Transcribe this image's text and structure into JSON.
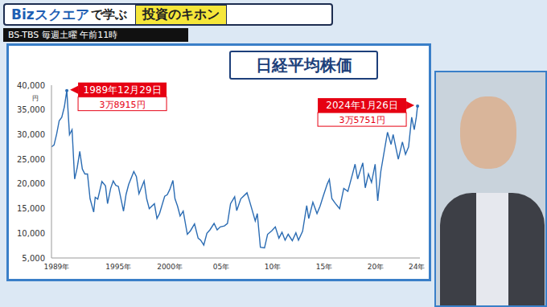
{
  "header": {
    "program": "Bizスクエア",
    "suffix": "で学ぶ",
    "series": "投資のキホン",
    "schedule": "BS-TBS 毎週土曜 午前11時"
  },
  "chart_data": {
    "type": "line",
    "title": "日経平均株価",
    "ylabel": "円",
    "color": "#2b6cb3",
    "grid": false,
    "xlim": [
      1988.5,
      2024.3
    ],
    "xticks": [
      {
        "value": 1989,
        "label": "1989年"
      },
      {
        "value": 1995,
        "label": "1995年"
      },
      {
        "value": 2000,
        "label": "2000年"
      },
      {
        "value": 2005,
        "label": "05年"
      },
      {
        "value": 2010,
        "label": "10年"
      },
      {
        "value": 2015,
        "label": "15年"
      },
      {
        "value": 2020,
        "label": "20年"
      },
      {
        "value": 2024,
        "label": "24年"
      }
    ],
    "ylim": [
      5000,
      40000
    ],
    "yticks": [
      {
        "value": 5000,
        "label": "5,000"
      },
      {
        "value": 10000,
        "label": "10,000"
      },
      {
        "value": 15000,
        "label": "15,000"
      },
      {
        "value": 20000,
        "label": "20,000"
      },
      {
        "value": 25000,
        "label": "25,000"
      },
      {
        "value": 30000,
        "label": "30,000"
      },
      {
        "value": 35000,
        "label": "35,000"
      },
      {
        "value": 40000,
        "label": "40,000"
      }
    ],
    "x": [
      1988.5,
      1988.75,
      1989.0,
      1989.25,
      1989.5,
      1989.75,
      1989.99,
      1990.25,
      1990.5,
      1990.75,
      1991.0,
      1991.25,
      1991.5,
      1991.75,
      1992.0,
      1992.25,
      1992.6,
      1992.75,
      1993.0,
      1993.4,
      1993.75,
      1993.95,
      1994.25,
      1994.5,
      1994.75,
      1995.0,
      1995.5,
      1995.75,
      1996.0,
      1996.5,
      1996.75,
      1997.0,
      1997.5,
      1997.75,
      1998.0,
      1998.5,
      1998.75,
      1999.0,
      1999.5,
      1999.75,
      2000.0,
      2000.3,
      2000.5,
      2000.75,
      2001.0,
      2001.3,
      2001.7,
      2002.0,
      2002.4,
      2002.75,
      2003.0,
      2003.3,
      2003.6,
      2003.9,
      2004.3,
      2004.6,
      2004.9,
      2005.3,
      2005.6,
      2005.9,
      2006.3,
      2006.5,
      2006.9,
      2007.3,
      2007.5,
      2007.75,
      2008.0,
      2008.3,
      2008.5,
      2008.8,
      2009.2,
      2009.5,
      2009.9,
      2010.25,
      2010.6,
      2010.9,
      2011.2,
      2011.5,
      2011.9,
      2012.25,
      2012.5,
      2012.9,
      2013.3,
      2013.5,
      2013.9,
      2014.3,
      2014.6,
      2014.9,
      2015.3,
      2015.5,
      2015.75,
      2016.1,
      2016.5,
      2016.9,
      2017.3,
      2017.75,
      2018.0,
      2018.25,
      2018.75,
      2018.99,
      2019.3,
      2019.6,
      2019.95,
      2020.2,
      2020.5,
      2020.9,
      2021.15,
      2021.5,
      2021.7,
      2022.0,
      2022.2,
      2022.6,
      2022.9,
      2023.2,
      2023.5,
      2023.75,
      2023.95,
      2024.07
    ],
    "values": [
      27500,
      27900,
      30100,
      32800,
      33500,
      35600,
      38915,
      29980,
      31000,
      20984,
      23300,
      26600,
      23000,
      22000,
      22000,
      17000,
      14309,
      17300,
      16900,
      20500,
      19600,
      16000,
      19100,
      20600,
      19700,
      19500,
      14485,
      17900,
      19900,
      22500,
      21500,
      18000,
      20600,
      17000,
      15000,
      16000,
      13000,
      14000,
      17500,
      17800,
      18900,
      20700,
      17000,
      15500,
      13500,
      14500,
      9800,
      10500,
      11900,
      9000,
      8600,
      7607,
      10000,
      10700,
      12000,
      10700,
      11300,
      11500,
      12000,
      16000,
      17400,
      14600,
      17000,
      17800,
      18200,
      16500,
      14700,
      12500,
      14000,
      7162,
      7054,
      9800,
      10500,
      11300,
      9000,
      10200,
      8600,
      9800,
      8500,
      10100,
      8600,
      10400,
      15600,
      13000,
      16300,
      14000,
      15500,
      17500,
      20000,
      20900,
      17000,
      16000,
      15000,
      19100,
      18500,
      22000,
      24000,
      21000,
      24270,
      19200,
      22000,
      20300,
      24000,
      16553,
      22500,
      27400,
      30467,
      28000,
      30000,
      27000,
      25000,
      28500,
      26000,
      27500,
      33500,
      31000,
      33500,
      35751
    ],
    "annotations": [
      {
        "x": 1989.99,
        "y": 38915,
        "label": "1989年12月29日",
        "value_label": "3万8915円"
      },
      {
        "x": 2024.07,
        "y": 35751,
        "label": "2024年1月26日",
        "value_label": "3万5751円"
      }
    ]
  }
}
